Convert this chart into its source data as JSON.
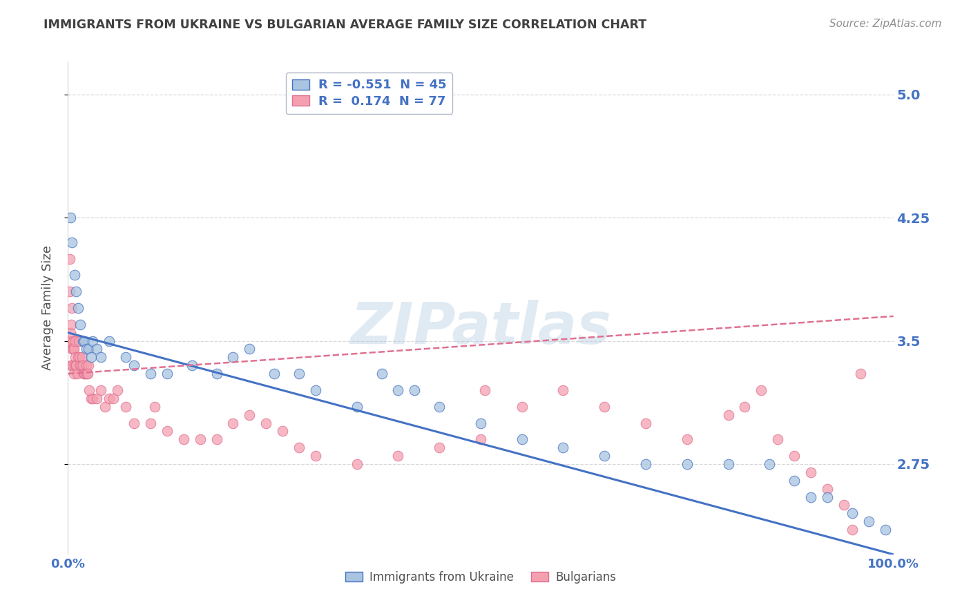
{
  "title": "IMMIGRANTS FROM UKRAINE VS BULGARIAN AVERAGE FAMILY SIZE CORRELATION CHART",
  "source": "Source: ZipAtlas.com",
  "ylabel": "Average Family Size",
  "watermark": "ZIPatlas",
  "legend_entries": [
    {
      "label": "Immigrants from Ukraine",
      "color": "#a8c4e0",
      "border": "#4472c4",
      "R": -0.551,
      "N": 45
    },
    {
      "label": "Bulgarians",
      "color": "#f4a0b0",
      "border": "#e07090",
      "R": 0.174,
      "N": 77
    }
  ],
  "ukraine_scatter": {
    "x": [
      0.3,
      0.5,
      0.8,
      1.0,
      1.2,
      1.5,
      1.8,
      2.0,
      2.2,
      2.5,
      2.8,
      3.0,
      3.5,
      4.0,
      5.0,
      7.0,
      8.0,
      10.0,
      12.0,
      15.0,
      18.0,
      20.0,
      22.0,
      25.0,
      28.0,
      30.0,
      35.0,
      38.0,
      40.0,
      42.0,
      45.0,
      50.0,
      55.0,
      60.0,
      65.0,
      70.0,
      75.0,
      80.0,
      85.0,
      88.0,
      90.0,
      92.0,
      95.0,
      97.0,
      99.0
    ],
    "y": [
      4.25,
      4.1,
      3.9,
      3.8,
      3.7,
      3.6,
      3.5,
      3.5,
      3.45,
      3.45,
      3.4,
      3.5,
      3.45,
      3.4,
      3.5,
      3.4,
      3.35,
      3.3,
      3.3,
      3.35,
      3.3,
      3.4,
      3.45,
      3.3,
      3.3,
      3.2,
      3.1,
      3.3,
      3.2,
      3.2,
      3.1,
      3.0,
      2.9,
      2.85,
      2.8,
      2.75,
      2.75,
      2.75,
      2.75,
      2.65,
      2.55,
      2.55,
      2.45,
      2.4,
      2.35
    ]
  },
  "bulgarian_scatter": {
    "x": [
      0.1,
      0.15,
      0.2,
      0.25,
      0.3,
      0.35,
      0.4,
      0.45,
      0.5,
      0.55,
      0.6,
      0.65,
      0.7,
      0.75,
      0.8,
      0.85,
      0.9,
      0.95,
      1.0,
      1.1,
      1.2,
      1.3,
      1.4,
      1.5,
      1.6,
      1.7,
      1.8,
      1.9,
      2.0,
      2.1,
      2.2,
      2.3,
      2.5,
      2.8,
      3.0,
      3.5,
      4.0,
      4.5,
      5.0,
      5.5,
      6.0,
      7.0,
      8.0,
      10.0,
      12.0,
      14.0,
      16.0,
      18.0,
      20.0,
      22.0,
      24.0,
      26.0,
      28.0,
      30.0,
      35.0,
      40.0,
      45.0,
      50.0,
      55.0,
      60.0,
      65.0,
      70.0,
      75.0,
      80.0,
      82.0,
      84.0,
      86.0,
      88.0,
      90.0,
      92.0,
      94.0,
      95.0,
      96.0,
      2.4,
      2.6,
      10.5,
      50.5
    ],
    "y": [
      3.5,
      3.5,
      4.0,
      3.8,
      3.55,
      3.35,
      3.6,
      3.7,
      3.45,
      3.35,
      3.45,
      3.5,
      3.45,
      3.3,
      3.35,
      3.5,
      3.4,
      3.35,
      3.35,
      3.3,
      3.4,
      3.5,
      3.4,
      3.35,
      3.35,
      3.4,
      3.35,
      3.3,
      3.3,
      3.3,
      3.35,
      3.3,
      3.35,
      3.15,
      3.15,
      3.15,
      3.2,
      3.1,
      3.15,
      3.15,
      3.2,
      3.1,
      3.0,
      3.0,
      2.95,
      2.9,
      2.9,
      2.9,
      3.0,
      3.05,
      3.0,
      2.95,
      2.85,
      2.8,
      2.75,
      2.8,
      2.85,
      2.9,
      3.1,
      3.2,
      3.1,
      3.0,
      2.9,
      3.05,
      3.1,
      3.2,
      2.9,
      2.8,
      2.7,
      2.6,
      2.5,
      2.35,
      3.3,
      3.3,
      3.2,
      3.1,
      3.2
    ]
  },
  "ukraine_line": {
    "x0": 0,
    "x1": 100,
    "y0": 3.55,
    "y1": 2.2
  },
  "bulgarian_line": {
    "x0": 0,
    "x1": 100,
    "y0": 3.3,
    "y1": 3.65
  },
  "ylim": [
    2.2,
    5.2
  ],
  "xlim": [
    0,
    100
  ],
  "yticks": [
    2.75,
    3.5,
    4.25,
    5.0
  ],
  "xtick_labels": [
    "0.0%",
    "100.0%"
  ],
  "xtick_positions": [
    0,
    100
  ],
  "label_color": "#4472c4",
  "ukraine_color": "#a8c4e0",
  "bulgarian_color": "#f4a0b0",
  "ukraine_line_color": "#4472c4",
  "bulgarian_line_color": "#e07090",
  "grid_color": "#d8d8d8",
  "title_color": "#404040",
  "source_color": "#909090"
}
